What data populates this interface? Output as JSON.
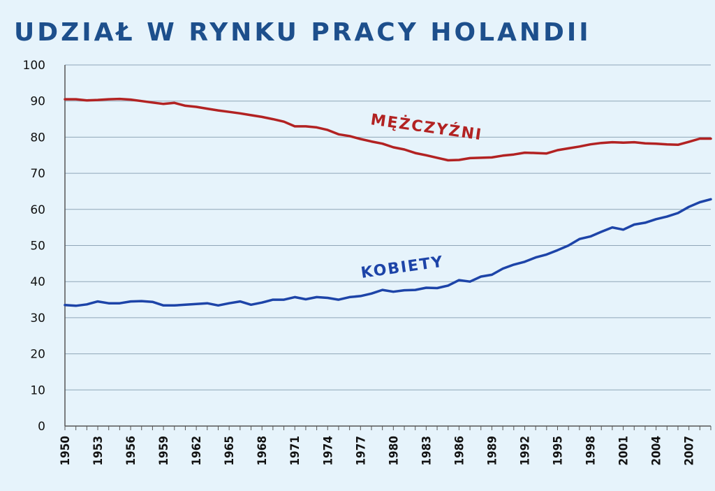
{
  "chart_data": {
    "type": "line",
    "title": "UDZIAŁ W RYNKU PRACY HOLANDII",
    "xlabel": "",
    "ylabel": "",
    "ylim": [
      0,
      100
    ],
    "xlim": [
      1950,
      2009
    ],
    "y_ticks": [
      "0",
      "10",
      "20",
      "30",
      "40",
      "50",
      "60",
      "70",
      "80",
      "90",
      "100"
    ],
    "x_ticks": [
      "1950",
      "1953",
      "1956",
      "1959",
      "1962",
      "1965",
      "1968",
      "1971",
      "1974",
      "1977",
      "1980",
      "1983",
      "1986",
      "1989",
      "1992",
      "1995",
      "1998",
      "2001",
      "2004",
      "2007"
    ],
    "grid": true,
    "series": [
      {
        "name": "MĘŻCZYŹNI",
        "color": "#b22222",
        "x": [
          1950,
          1951,
          1952,
          1953,
          1954,
          1955,
          1956,
          1957,
          1958,
          1959,
          1960,
          1961,
          1962,
          1963,
          1964,
          1965,
          1966,
          1967,
          1968,
          1969,
          1970,
          1971,
          1972,
          1973,
          1974,
          1975,
          1976,
          1977,
          1978,
          1979,
          1980,
          1981,
          1982,
          1983,
          1984,
          1985,
          1986,
          1987,
          1988,
          1989,
          1990,
          1991,
          1992,
          1993,
          1994,
          1995,
          1996,
          1997,
          1998,
          1999,
          2000,
          2001,
          2002,
          2003,
          2004,
          2005,
          2006,
          2007,
          2008,
          2009
        ],
        "values": [
          90.5,
          90.5,
          90.2,
          90.3,
          90.5,
          90.6,
          90.4,
          90.0,
          89.6,
          89.2,
          89.5,
          88.7,
          88.4,
          87.9,
          87.4,
          87.0,
          86.6,
          86.1,
          85.6,
          85.0,
          84.3,
          83.0,
          83.0,
          82.7,
          82.0,
          80.8,
          80.3,
          79.5,
          78.8,
          78.2,
          77.2,
          76.6,
          75.6,
          75.0,
          74.3,
          73.6,
          73.7,
          74.2,
          74.3,
          74.4,
          74.9,
          75.2,
          75.7,
          75.6,
          75.5,
          76.4,
          76.9,
          77.4,
          78.0,
          78.4,
          78.6,
          78.5,
          78.6,
          78.3,
          78.2,
          78.0,
          77.9,
          78.7,
          79.6,
          79.6
        ]
      },
      {
        "name": "KOBIETY",
        "color": "#1d44a8",
        "x": [
          1950,
          1951,
          1952,
          1953,
          1954,
          1955,
          1956,
          1957,
          1958,
          1959,
          1960,
          1961,
          1962,
          1963,
          1964,
          1965,
          1966,
          1967,
          1968,
          1969,
          1970,
          1971,
          1972,
          1973,
          1974,
          1975,
          1976,
          1977,
          1978,
          1979,
          1980,
          1981,
          1982,
          1983,
          1984,
          1985,
          1986,
          1987,
          1988,
          1989,
          1990,
          1991,
          1992,
          1993,
          1994,
          1995,
          1996,
          1997,
          1998,
          1999,
          2000,
          2001,
          2002,
          2003,
          2004,
          2005,
          2006,
          2007,
          2008,
          2009
        ],
        "values": [
          33.5,
          33.3,
          33.7,
          34.5,
          34.0,
          34.0,
          34.5,
          34.6,
          34.4,
          33.4,
          33.4,
          33.6,
          33.8,
          34.0,
          33.4,
          34.0,
          34.5,
          33.6,
          34.2,
          35.0,
          35.0,
          35.7,
          35.1,
          35.7,
          35.5,
          35.0,
          35.7,
          36.0,
          36.7,
          37.7,
          37.2,
          37.6,
          37.7,
          38.3,
          38.2,
          38.9,
          40.4,
          40.0,
          41.4,
          41.9,
          43.6,
          44.7,
          45.5,
          46.7,
          47.5,
          48.7,
          50.0,
          51.8,
          52.5,
          53.8,
          55.0,
          54.4,
          55.8,
          56.3,
          57.3,
          58.0,
          59.0,
          60.7,
          62.0,
          62.8
        ]
      }
    ]
  }
}
